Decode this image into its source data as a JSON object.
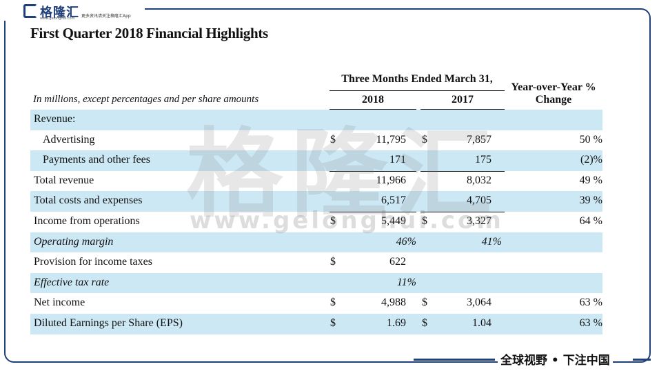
{
  "brand": {
    "logo_text": "格隆汇",
    "url": "www.gelonghui.com",
    "tagline": "更多资讯请关注格隆汇App",
    "color": "#1f3f7a"
  },
  "watermark": {
    "text": "格隆汇",
    "url": "www.gelonghui.com"
  },
  "title": "First Quarter 2018 Financial Highlights",
  "subtitle": "In millions, except percentages and per share amounts",
  "headers": {
    "group": "Three Months Ended March 31,",
    "col_2018": "2018",
    "col_2017": "2017",
    "yoy_line1": "Year-over-Year %",
    "yoy_line2": "Change"
  },
  "rows": [
    {
      "label": "Revenue:",
      "d1": "",
      "v1": "",
      "d2": "",
      "v2": "",
      "yoy": ""
    },
    {
      "label": "Advertising",
      "d1": "$",
      "v1": "11,795",
      "d2": "$",
      "v2": "7,857",
      "yoy": "50 %"
    },
    {
      "label": "Payments and other fees",
      "d1": "",
      "v1": "171",
      "d2": "",
      "v2": "175",
      "yoy": "(2)%"
    },
    {
      "label": "Total revenue",
      "d1": "",
      "v1": "11,966",
      "d2": "",
      "v2": "8,032",
      "yoy": "49 %"
    },
    {
      "label": "Total costs and expenses",
      "d1": "",
      "v1": "6,517",
      "d2": "",
      "v2": "4,705",
      "yoy": "39 %"
    },
    {
      "label": "Income from operations",
      "d1": "$",
      "v1": "5,449",
      "d2": "$",
      "v2": "3,327",
      "yoy": "64 %"
    },
    {
      "label": "Operating margin",
      "p1": "46%",
      "p2": "41%"
    },
    {
      "label": "Provision for income taxes",
      "d1": "$",
      "v1": "622",
      "d2": "",
      "v2": "",
      "yoy": ""
    },
    {
      "label": "Effective tax rate",
      "p1": "11%",
      "p2": ""
    },
    {
      "label": "Net income",
      "d1": "$",
      "v1": "4,988",
      "d2": "$",
      "v2": "3,064",
      "yoy": "63 %"
    },
    {
      "label": "Diluted Earnings per Share (EPS)",
      "d1": "$",
      "v1": "1.69",
      "d2": "$",
      "v2": "1.04",
      "yoy": "63 %"
    }
  ],
  "footer": "全球视野 • 下注中国"
}
